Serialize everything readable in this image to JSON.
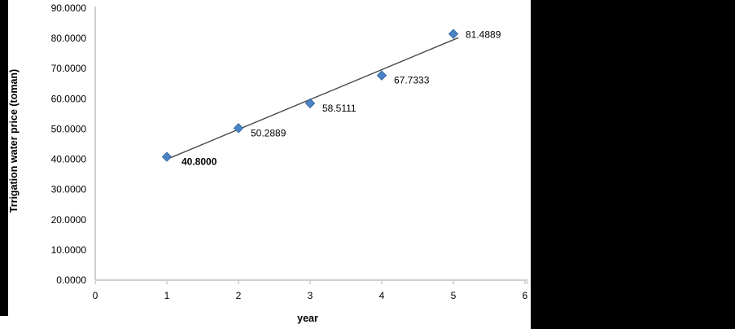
{
  "figure": {
    "background": "#ffffff",
    "left_bar_color": "#000000",
    "right_panel_color": "#000000"
  },
  "chart_data": {
    "type": "scatter",
    "title": "",
    "xlabel": "year",
    "ylabel": "Trrigation water price (toman)",
    "xlim": [
      0,
      6
    ],
    "ylim": [
      0,
      90
    ],
    "grid": false,
    "legend": false,
    "x_ticks": [
      "0",
      "1",
      "2",
      "3",
      "4",
      "5",
      "6"
    ],
    "y_ticks": [
      "0.0000",
      "10.0000",
      "20.0000",
      "30.0000",
      "40.0000",
      "50.0000",
      "60.0000",
      "70.0000",
      "80.0000",
      "90.0000"
    ],
    "points": [
      {
        "x": 1,
        "y": 40.8,
        "label": "40.8000",
        "label_bold": true
      },
      {
        "x": 2,
        "y": 50.2889,
        "label": "50.2889",
        "label_bold": false
      },
      {
        "x": 3,
        "y": 58.5111,
        "label": "58.5111",
        "label_bold": false
      },
      {
        "x": 4,
        "y": 67.7333,
        "label": "67.7333",
        "label_bold": false
      },
      {
        "x": 5,
        "y": 81.4889,
        "label": "81.4889",
        "label_bold": false
      }
    ],
    "trendline": {
      "type": "linear",
      "slope": 9.8822,
      "intercept": 30.1178,
      "x_start": 1,
      "x_end": 5.07
    },
    "colors": {
      "marker_fill": "#4a84c6",
      "marker_edge": "#3a6ba6",
      "trendline": "#4a4a4a",
      "axis": "#bfbfbf",
      "text": "#000000"
    }
  }
}
